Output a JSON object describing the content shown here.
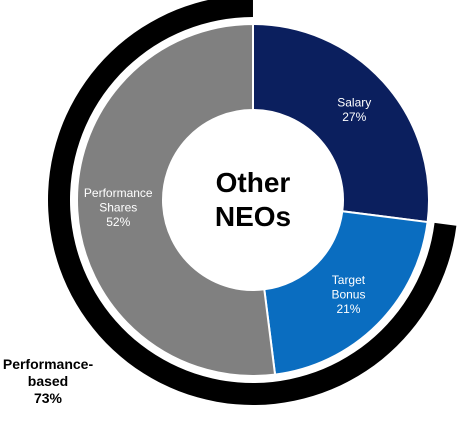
{
  "chart_data": {
    "type": "donut",
    "center_label": "Other NEOs",
    "categories": [
      "Salary",
      "Target Bonus",
      "Performance Shares"
    ],
    "values": [
      27,
      21,
      52
    ],
    "value_labels": [
      "27%",
      "21%",
      "52%"
    ],
    "colors": [
      "#0b1f5e",
      "#0a6dc0",
      "#808080"
    ],
    "outer_ring": {
      "label": "Performance-based",
      "value": 73,
      "value_label": "73%",
      "color": "#000000"
    }
  }
}
